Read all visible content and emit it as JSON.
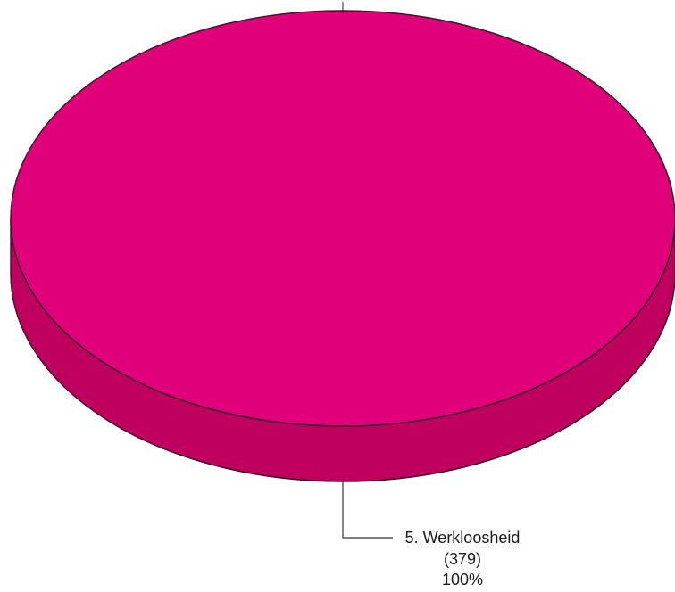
{
  "chart_data": {
    "type": "pie",
    "style": "3d",
    "title": "",
    "slices": [
      {
        "label": "5. Werkloosheid",
        "count": 379,
        "count_text": "(379)",
        "percent": 100,
        "percent_text": "100%",
        "color": "#e0007a",
        "side_color": "#c0005e"
      }
    ],
    "legend": "none",
    "label_style": "leader-line"
  }
}
